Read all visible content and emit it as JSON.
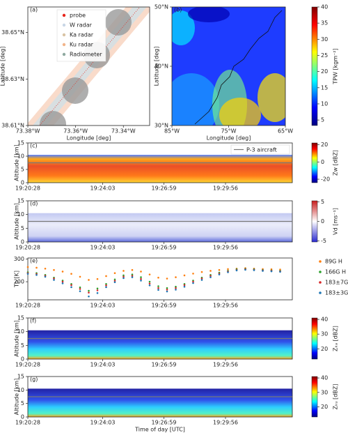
{
  "chart_data": [
    {
      "type": "map",
      "panel": "(a)",
      "xlabel": "Longitude [deg]",
      "ylabel": "Latitude [deg]",
      "xlim": [
        -73.38,
        -73.329
      ],
      "xticks": [
        {
          "value": -73.38,
          "label": "73.38°W"
        },
        {
          "value": -73.36,
          "label": "73.36°W"
        },
        {
          "value": -73.34,
          "label": "73.34°W"
        }
      ],
      "ylim": [
        38.61,
        38.661
      ],
      "yticks": [
        {
          "value": 38.61,
          "label": "38.61°N"
        },
        {
          "value": 38.63,
          "label": "38.63°N"
        },
        {
          "value": 38.65,
          "label": "38.65°N"
        }
      ],
      "legend": [
        {
          "name": "probe",
          "color": "#e8251b"
        },
        {
          "name": "W radar",
          "color": "#c9d7e6"
        },
        {
          "name": "Ka radar",
          "color": "#d9c3a4"
        },
        {
          "name": "Ku radar",
          "color": "#f2b48a"
        },
        {
          "name": "Radiometer",
          "color": "#8fa9a0"
        }
      ]
    },
    {
      "type": "map",
      "panel": "(b)",
      "xlabel": "Longitude [deg]",
      "ylabel": "Latitude [deg]",
      "xlim": [
        -85,
        -65
      ],
      "xticks": [
        {
          "value": -85,
          "label": "85°W"
        },
        {
          "value": -75,
          "label": "75°W"
        },
        {
          "value": -65,
          "label": "65°W"
        }
      ],
      "ylim": [
        30,
        50
      ],
      "yticks": [
        {
          "value": 30,
          "label": "30°N"
        },
        {
          "value": 40,
          "label": "40°N"
        },
        {
          "value": 50,
          "label": "50°N"
        }
      ],
      "colorbar": {
        "label": "TPW [kgm⁻²]",
        "lim": [
          3.3,
          40
        ],
        "ticks": [
          5,
          10,
          15,
          20,
          25,
          30,
          35,
          40
        ]
      }
    },
    {
      "type": "heatmap",
      "panel": "(c)",
      "ylabel": "Altitude [km]",
      "xlim": [
        0,
        760
      ],
      "xticks": [
        {
          "value": 0,
          "label": "19:20:28"
        },
        {
          "value": 215,
          "label": "19:24:03"
        },
        {
          "value": 391,
          "label": "19:26:59"
        },
        {
          "value": 568,
          "label": "19:29:56"
        }
      ],
      "ylim": [
        0,
        15
      ],
      "yticks": [
        0,
        5,
        10,
        15
      ],
      "colorbar": {
        "label": "Zw [dBZ]",
        "lim": [
          -24,
          22
        ],
        "ticks": [
          -20,
          0,
          20
        ]
      },
      "aircraft": {
        "name": "P-3 aircraft",
        "altitude": 7.5
      }
    },
    {
      "type": "heatmap",
      "panel": "(d)",
      "ylabel": "Altitude [km]",
      "xlim": [
        0,
        760
      ],
      "xticks": [
        {
          "value": 0,
          "label": "19:20:28"
        },
        {
          "value": 215,
          "label": "19:24:03"
        },
        {
          "value": 391,
          "label": "19:26:59"
        },
        {
          "value": 568,
          "label": "19:29:56"
        }
      ],
      "ylim": [
        0,
        15
      ],
      "yticks": [
        0,
        5,
        10,
        15
      ],
      "colorbar": {
        "label": "Vd [ms⁻¹]",
        "lim": [
          -5.3,
          5.3
        ],
        "ticks": [
          -5,
          0,
          5
        ]
      },
      "aircraft": {
        "altitude": 7.5
      }
    },
    {
      "type": "scatter",
      "panel": "(e)",
      "ylabel": "Tb [K]",
      "xlim": [
        0,
        760
      ],
      "xticks": [
        {
          "value": 0,
          "label": "19:20:28"
        },
        {
          "value": 215,
          "label": "19:24:03"
        },
        {
          "value": 391,
          "label": "19:26:59"
        },
        {
          "value": 568,
          "label": "19:29:56"
        }
      ],
      "ylim": [
        120,
        305
      ],
      "yticks": [
        200,
        300
      ],
      "x": [
        0,
        25,
        50,
        75,
        100,
        125,
        150,
        175,
        200,
        225,
        250,
        275,
        300,
        325,
        350,
        375,
        400,
        425,
        450,
        475,
        500,
        525,
        550,
        575,
        600,
        625,
        650,
        675,
        700,
        725
      ],
      "series": [
        {
          "name": "89G H",
          "color": "#ff7f0e",
          "values": [
            265,
            262,
            258,
            252,
            245,
            235,
            222,
            208,
            212,
            225,
            238,
            248,
            252,
            245,
            232,
            218,
            214,
            220,
            228,
            236,
            243,
            248,
            252,
            256,
            258,
            260,
            258,
            256,
            255,
            254
          ]
        },
        {
          "name": "166G H",
          "color": "#2ca02c",
          "values": [
            242,
            238,
            230,
            218,
            205,
            190,
            175,
            160,
            170,
            190,
            210,
            228,
            232,
            220,
            200,
            180,
            172,
            178,
            190,
            205,
            218,
            230,
            240,
            248,
            255,
            257,
            255,
            252,
            250,
            248
          ]
        },
        {
          "name": "183±7G H",
          "color": "#d62728",
          "values": [
            238,
            234,
            226,
            214,
            200,
            185,
            168,
            152,
            162,
            184,
            204,
            222,
            226,
            212,
            192,
            172,
            165,
            172,
            185,
            200,
            214,
            226,
            236,
            245,
            252,
            255,
            253,
            250,
            248,
            246
          ]
        },
        {
          "name": "183±3G H",
          "color": "#1f77b4",
          "values": [
            235,
            230,
            222,
            208,
            193,
            176,
            158,
            135,
            150,
            176,
            198,
            216,
            220,
            205,
            184,
            164,
            157,
            165,
            178,
            194,
            208,
            220,
            232,
            242,
            250,
            253,
            251,
            248,
            246,
            244
          ]
        }
      ]
    },
    {
      "type": "heatmap",
      "panel": "(f)",
      "ylabel": "Altitude [km]",
      "xlim": [
        0,
        760
      ],
      "xticks": [
        {
          "value": 0,
          "label": "19:20:28"
        },
        {
          "value": 215,
          "label": "19:24:03"
        },
        {
          "value": 391,
          "label": "19:26:59"
        },
        {
          "value": 568,
          "label": "19:29:56"
        }
      ],
      "ylim": [
        0,
        15
      ],
      "yticks": [
        0,
        5,
        10,
        15
      ],
      "colorbar": {
        "label": "Zₖₐ [dBZ]",
        "lim": [
          13,
          41
        ],
        "ticks": [
          20,
          30,
          40
        ]
      },
      "aircraft": {
        "altitude": 7.5
      }
    },
    {
      "type": "heatmap",
      "panel": "(g)",
      "ylabel": "Altitude [km]",
      "xlabel": "Time of day [UTC]",
      "xlim": [
        0,
        760
      ],
      "xticks": [
        {
          "value": 0,
          "label": "19:20:28"
        },
        {
          "value": 215,
          "label": "19:24:03"
        },
        {
          "value": 391,
          "label": "19:26:59"
        },
        {
          "value": 568,
          "label": "19:29:56"
        }
      ],
      "ylim": [
        0,
        15
      ],
      "yticks": [
        0,
        5,
        10,
        15
      ],
      "colorbar": {
        "label": "Zₖᵤ [dBZ]",
        "lim": [
          13,
          41
        ],
        "ticks": [
          20,
          30,
          40
        ]
      },
      "aircraft": {
        "altitude": 7.5
      }
    }
  ]
}
